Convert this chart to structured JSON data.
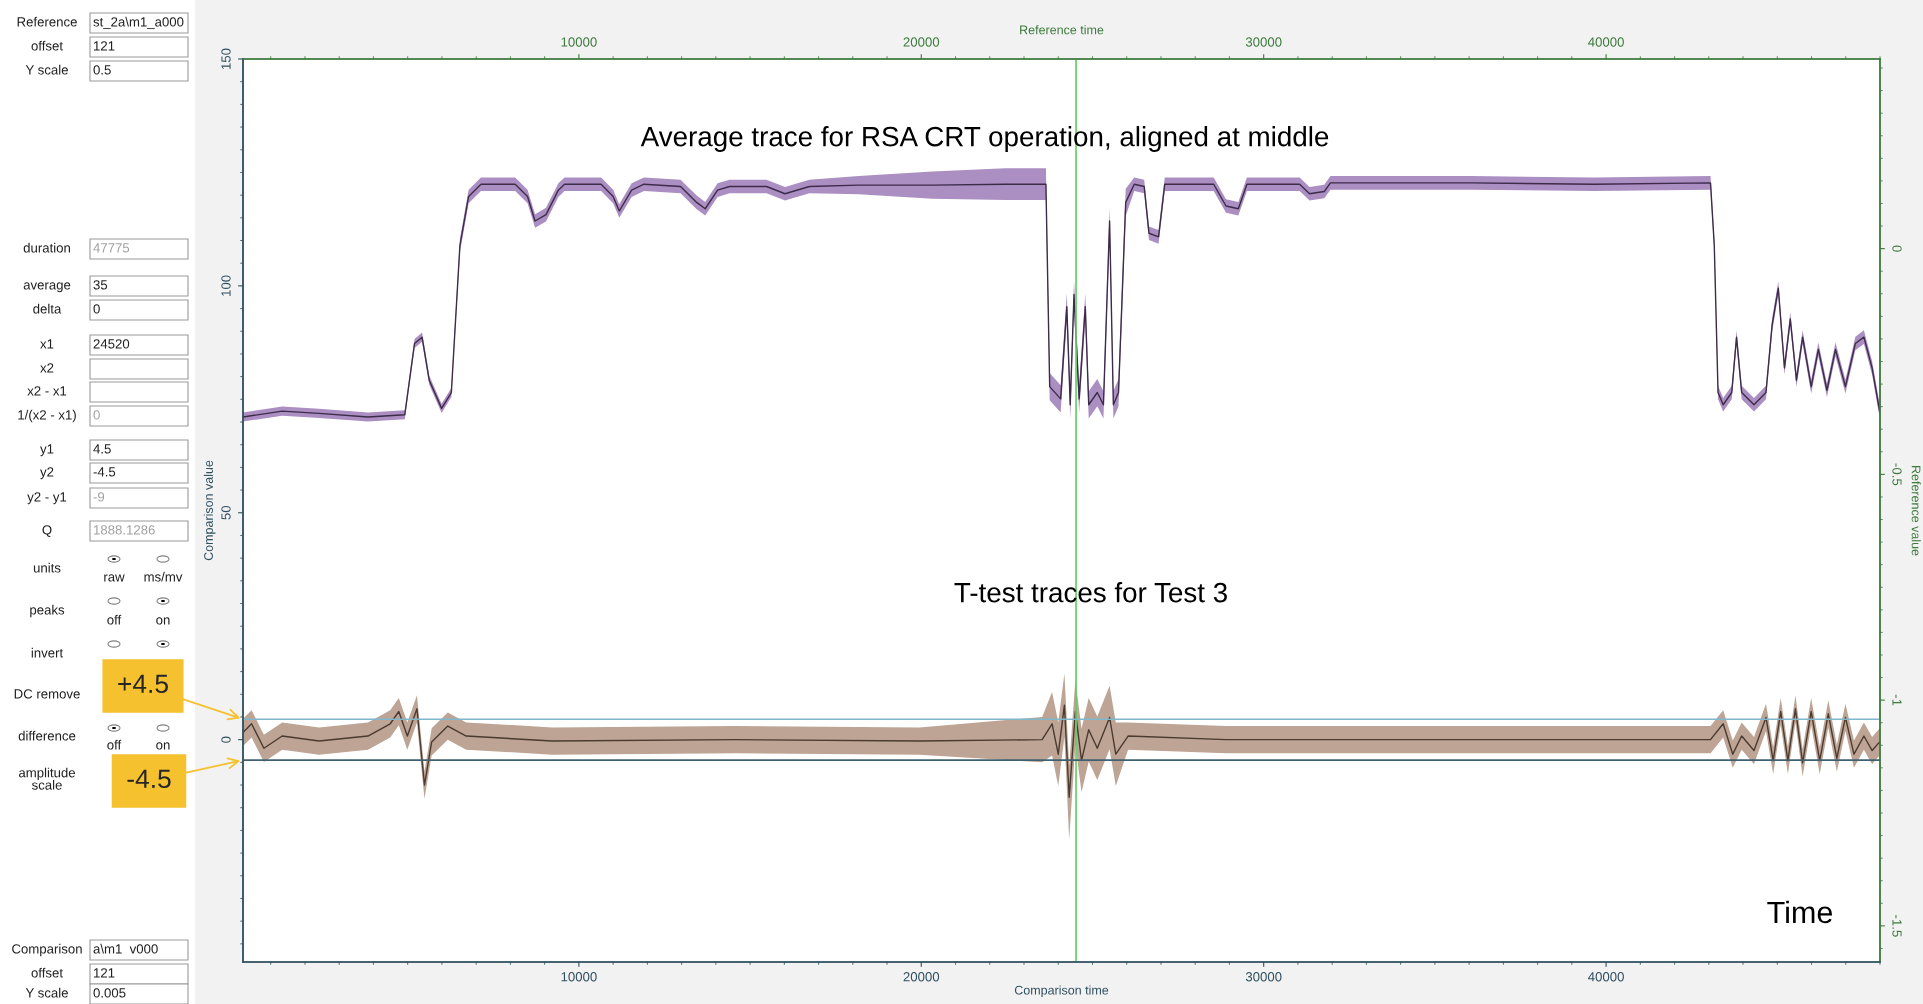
{
  "chart_data": {
    "type": "line",
    "xlabel": "Comparison time",
    "ylabel": "Comparison value",
    "x2label": "Reference time",
    "y2label": "Reference value",
    "xlim": [
      190,
      48000
    ],
    "xticks": [
      10000,
      20000,
      30000,
      40000
    ],
    "x2lim": [
      190,
      48000
    ],
    "x2ticks": [
      10000,
      20000,
      30000,
      40000
    ],
    "ylim": [
      -49,
      150
    ],
    "yticks": [
      0,
      50,
      100,
      150
    ],
    "y2lim": [
      -1.58,
      0.42
    ],
    "y2ticks": [
      0,
      -0.5,
      -1,
      -1.5
    ],
    "grid": false,
    "legend": false,
    "series": [
      {
        "color": "#3d2b4a",
        "x": [
          190,
          1335,
          2410,
          3840,
          4915,
          5200,
          5420,
          5630,
          5990,
          6275,
          6525,
          6780,
          7140,
          8140,
          8500,
          8720,
          9040,
          9400,
          9580,
          10650,
          11000,
          11180,
          11540,
          11900,
          12970,
          13440,
          13690,
          14050,
          14400,
          15480,
          16020,
          16730,
          18170,
          20320,
          22460,
          23640,
          23750,
          24070,
          24250,
          24350,
          24460,
          24610,
          24790,
          24890,
          25140,
          25320,
          25500,
          25610,
          25760,
          25970,
          26220,
          26510,
          26650,
          26930,
          27110,
          28540,
          28900,
          29260,
          29510,
          31050,
          31340,
          31770,
          31950,
          36070,
          39650,
          43050,
          43160,
          43270,
          43420,
          43670,
          43810,
          43960,
          44320,
          44670,
          44850,
          45030,
          45210,
          45380,
          45560,
          45740,
          45990,
          46200,
          46450,
          46700,
          46990,
          47280,
          47530,
          47770,
          47990
        ],
        "values": [
          71.1,
          72.4,
          71.9,
          71.1,
          71.6,
          87.3,
          88.7,
          79.2,
          73,
          76.5,
          108.9,
          119.7,
          122.4,
          122.4,
          119.7,
          114.3,
          115.7,
          121.1,
          122.4,
          122.4,
          119.7,
          116.5,
          121.1,
          122.4,
          121.9,
          118.4,
          117,
          121.1,
          121.9,
          121.9,
          120.3,
          121.9,
          122.2,
          122.2,
          122.4,
          122.4,
          77.8,
          75.1,
          95.4,
          73.8,
          98.1,
          75.1,
          95.4,
          73.8,
          76.5,
          73.8,
          114.3,
          73.8,
          76.5,
          118.4,
          122.4,
          121.9,
          111.6,
          110.8,
          122.4,
          122.4,
          117.6,
          117,
          122.4,
          122.4,
          120.3,
          120.8,
          122.7,
          122.7,
          122.4,
          122.7,
          108.9,
          76.5,
          73.8,
          76.5,
          88.7,
          76.5,
          73.8,
          76.5,
          91.4,
          99.5,
          81.9,
          92.7,
          79.2,
          88.7,
          77.8,
          86,
          77,
          86,
          77.8,
          87.3,
          88.7,
          81.9,
          72.4
        ],
        "lower": [
          70.1,
          71.4,
          70.9,
          70.1,
          70.6,
          86.3,
          87.7,
          78.2,
          72,
          75.5,
          107.4,
          118.2,
          120.9,
          120.9,
          118.2,
          112.8,
          114.2,
          119.6,
          120.9,
          120.9,
          118.2,
          115,
          119.6,
          120.9,
          120.4,
          116.9,
          115.5,
          119.6,
          120.4,
          120.4,
          118.8,
          120.4,
          120.2,
          119.2,
          118.9,
          118.9,
          74.8,
          72.1,
          92.4,
          70.8,
          95.1,
          72.1,
          92.4,
          70.8,
          73.5,
          70.8,
          111.3,
          70.8,
          73.5,
          115.4,
          120.9,
          120.4,
          110.1,
          109.3,
          120.9,
          120.9,
          116.1,
          115.5,
          120.9,
          120.9,
          118.8,
          119.3,
          121.2,
          121.2,
          120.9,
          121.2,
          107.4,
          75,
          72.3,
          75,
          87.2,
          75,
          72.3,
          75,
          89.9,
          98,
          80.4,
          91.2,
          77.7,
          87.2,
          76.3,
          84.5,
          75.5,
          84.5,
          76.3,
          85.8,
          87.2,
          80.4,
          70.9
        ],
        "upper": [
          72.1,
          73.4,
          72.9,
          72.1,
          72.6,
          88.3,
          89.7,
          80.2,
          74,
          77.5,
          110.4,
          121.2,
          123.9,
          123.9,
          121.2,
          115.8,
          117.2,
          122.6,
          123.9,
          123.9,
          121.2,
          118,
          122.6,
          123.9,
          123.4,
          119.9,
          118.5,
          122.6,
          123.4,
          123.4,
          121.8,
          123.4,
          124.2,
          125.2,
          125.9,
          125.9,
          80.8,
          78.1,
          98.4,
          76.8,
          101.1,
          78.1,
          98.4,
          76.8,
          79.5,
          76.8,
          117.3,
          76.8,
          79.5,
          121.4,
          123.9,
          123.4,
          113.1,
          112.3,
          123.9,
          123.9,
          119.1,
          118.5,
          123.9,
          123.9,
          121.8,
          122.3,
          124.2,
          124.2,
          123.9,
          124.2,
          110.4,
          78,
          75.3,
          78,
          90.2,
          78,
          75.3,
          78,
          92.9,
          101,
          83.4,
          94.2,
          80.7,
          90.2,
          79.3,
          87.5,
          78.5,
          87.5,
          79.3,
          88.8,
          90.2,
          83.4,
          73.9
        ]
      },
      {
        "color": "#4a3a30",
        "x": [
          190,
          440,
          800,
          1335,
          2410,
          3840,
          4490,
          4740,
          4990,
          5270,
          5490,
          5700,
          6170,
          6710,
          9220,
          14580,
          19950,
          23530,
          23820,
          24000,
          24180,
          24320,
          24500,
          24680,
          24890,
          25140,
          25500,
          25680,
          26040,
          28900,
          36070,
          43050,
          43420,
          43700,
          43960,
          44320,
          44670,
          44880,
          45100,
          45310,
          45530,
          45740,
          45990,
          46240,
          46490,
          46740,
          46990,
          47240,
          47530,
          47770,
          47990
        ],
        "values": [
          1.6,
          3.5,
          -1.9,
          0.8,
          -0.3,
          0.8,
          3.5,
          6.2,
          0.8,
          6.8,
          -10,
          -0.5,
          3,
          0.8,
          -0.3,
          0,
          -0.3,
          0,
          3.5,
          -3.2,
          7.6,
          -12.7,
          6.2,
          -4.6,
          2.2,
          -1.9,
          4.9,
          -3.2,
          0.8,
          0,
          0,
          0,
          3.5,
          -3.2,
          0.8,
          -2.4,
          4.9,
          -4.6,
          6.2,
          -4.6,
          6.8,
          -5.1,
          6.2,
          -4.6,
          5.7,
          -4.1,
          4.9,
          -3.2,
          0.8,
          -2.4,
          -0.5
        ],
        "lower": [
          -1.4,
          0.5,
          -4.9,
          -2.2,
          -3.3,
          -2.2,
          0.5,
          3.2,
          -2.2,
          3.8,
          -13,
          -3.5,
          0,
          -2.2,
          -3.3,
          -3,
          -3.3,
          -5,
          -3.5,
          -10.2,
          0.6,
          -22,
          -1,
          -11.6,
          -4.8,
          -8.9,
          -2.1,
          -10.2,
          -2.2,
          -3,
          -3,
          -3,
          0.5,
          -6.2,
          -2.2,
          -5.4,
          1.9,
          -7.6,
          3.2,
          -7.6,
          3.8,
          -8.1,
          3.2,
          -7.6,
          2.7,
          -7.1,
          1.9,
          -6.2,
          -2.2,
          -5.4,
          -3.5
        ],
        "upper": [
          4.6,
          6.5,
          1.1,
          3.8,
          2.7,
          3.8,
          6.5,
          9.2,
          3.8,
          9.8,
          -7,
          2.5,
          6,
          3.8,
          2.7,
          3,
          2.7,
          5,
          10.5,
          3.8,
          14.6,
          -5.7,
          13.2,
          2.4,
          9.2,
          5.1,
          11.9,
          3.8,
          3.8,
          3,
          3,
          3,
          6.5,
          -0.2,
          3.8,
          0.6,
          7.9,
          -1.6,
          9.2,
          -1.6,
          9.8,
          -2.1,
          9.2,
          -1.6,
          8.7,
          -1.1,
          7.9,
          -0.2,
          3.8,
          0.6,
          2.5
        ]
      }
    ],
    "ref_lines": [
      {
        "axis": "x",
        "value": 24520,
        "color": "#66cc66"
      },
      {
        "axis": "y",
        "value": 4.5,
        "color": "#7fb8cc"
      },
      {
        "axis": "y",
        "value": -4.5,
        "color": "#3f6070"
      }
    ],
    "annotations": [
      "Average trace for RSA CRT operation, aligned at middle",
      "T-test traces for Test 3",
      "Time",
      {
        "text": "+4.5",
        "x": 190,
        "y": 4.5
      },
      {
        "text": "-4.5",
        "x": 190,
        "y": -4.5
      },
      "Reference",
      "st_2a\\m1_a000",
      "offset",
      "121",
      "Y scale",
      "0.5",
      "duration",
      "47775",
      "average",
      "35",
      "delta",
      "0",
      "x1",
      "24520",
      "x2",
      "x2 - x1",
      "1/(x2 - x1)",
      "0",
      "y1",
      "4.5",
      "y2",
      "-4.5",
      "y2 - y1",
      "-9",
      "Q",
      "1888.1286",
      "units",
      "raw",
      "ms/mv",
      "peaks",
      "off",
      "on",
      "invert",
      "DC remove",
      "difference",
      "off",
      "on",
      "amplitude\nscale",
      "Comparison",
      "a\\m1  v000",
      "offset",
      "121",
      "Y scale",
      "0.005"
    ]
  }
}
